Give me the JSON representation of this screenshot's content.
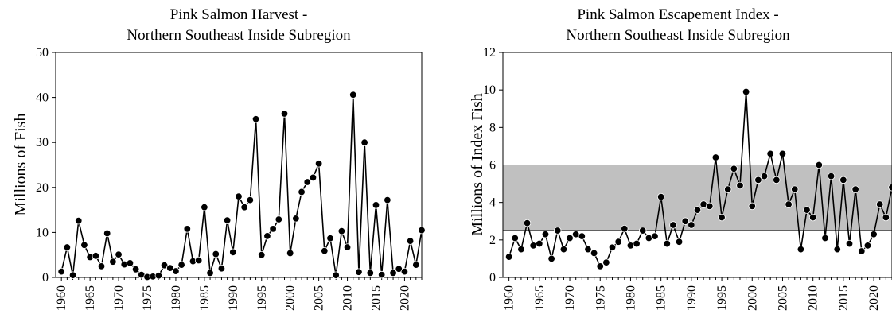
{
  "chart_data": [
    {
      "type": "line",
      "title": "Pink Salmon Harvest  -",
      "subtitle": "Northern Southeast Inside Subregion",
      "xlabel": "",
      "ylabel": "Millions of Fish",
      "xlim": [
        1959,
        2023
      ],
      "ylim": [
        0,
        50
      ],
      "yticks": [
        0,
        10,
        20,
        30,
        40,
        50
      ],
      "xticks": [
        1960,
        1965,
        1970,
        1975,
        1980,
        1985,
        1990,
        1995,
        2000,
        2005,
        2010,
        2015,
        2020
      ],
      "grid": false,
      "line_color": "#000000",
      "marker_color": "#000000",
      "series": [
        {
          "x": [
            1960,
            1961,
            1962,
            1963,
            1964,
            1965,
            1966,
            1967,
            1968,
            1969,
            1970,
            1971,
            1972,
            1973,
            1974,
            1975,
            1976,
            1977,
            1978,
            1979,
            1980,
            1981,
            1982,
            1983,
            1984,
            1985,
            1986,
            1987,
            1988,
            1989,
            1990,
            1991,
            1992,
            1993,
            1994,
            1995,
            1996,
            1997,
            1998,
            1999,
            2000,
            2001,
            2002,
            2003,
            2004,
            2005,
            2006,
            2007,
            2008,
            2009,
            2010,
            2011,
            2012,
            2013,
            2014,
            2015,
            2016,
            2017,
            2018,
            2019,
            2020,
            2021,
            2022,
            2023
          ],
          "values": [
            1.3,
            6.7,
            0.5,
            12.6,
            7.2,
            4.5,
            4.8,
            2.5,
            9.8,
            3.5,
            5.1,
            2.9,
            3.2,
            1.8,
            0.6,
            0.1,
            0.2,
            0.4,
            2.7,
            2.1,
            1.4,
            2.8,
            10.8,
            3.6,
            3.8,
            15.6,
            1.0,
            5.2,
            2.0,
            12.7,
            5.6,
            18.0,
            15.6,
            17.2,
            35.2,
            5.0,
            9.2,
            10.8,
            12.9,
            36.4,
            5.4,
            13.1,
            19.0,
            21.2,
            22.2,
            25.3,
            5.9,
            8.7,
            0.5,
            10.3,
            6.7,
            40.6,
            1.2,
            30.0,
            1.0,
            16.1,
            0.6,
            17.2,
            1.0,
            1.9,
            1.3,
            8.1,
            2.8,
            10.5
          ]
        }
      ]
    },
    {
      "type": "line",
      "title": "Pink Salmon Escapement Index  -",
      "subtitle": "Northern Southeast Inside Subregion",
      "xlabel": "",
      "ylabel": "Millions of Index Fish",
      "xlim": [
        1959,
        2023
      ],
      "ylim": [
        0,
        12
      ],
      "yticks": [
        0,
        2,
        4,
        6,
        8,
        10,
        12
      ],
      "xticks": [
        1960,
        1965,
        1970,
        1975,
        1980,
        1985,
        1990,
        1995,
        2000,
        2005,
        2010,
        2015,
        2020
      ],
      "grid": false,
      "goal_range": [
        2.5,
        6.0
      ],
      "goal_color": "#c0c0c0",
      "line_color": "#000000",
      "marker_color": "#000000",
      "series": [
        {
          "x": [
            1960,
            1961,
            1962,
            1963,
            1964,
            1965,
            1966,
            1967,
            1968,
            1969,
            1970,
            1971,
            1972,
            1973,
            1974,
            1975,
            1976,
            1977,
            1978,
            1979,
            1980,
            1981,
            1982,
            1983,
            1984,
            1985,
            1986,
            1987,
            1988,
            1989,
            1990,
            1991,
            1992,
            1993,
            1994,
            1995,
            1996,
            1997,
            1998,
            1999,
            2000,
            2001,
            2002,
            2003,
            2004,
            2005,
            2006,
            2007,
            2008,
            2009,
            2010,
            2011,
            2012,
            2013,
            2014,
            2015,
            2016,
            2017,
            2018,
            2019,
            2020,
            2021,
            2022,
            2023
          ],
          "values": [
            1.1,
            2.1,
            1.5,
            2.9,
            1.7,
            1.8,
            2.3,
            1.0,
            2.5,
            1.5,
            2.1,
            2.3,
            2.2,
            1.5,
            1.3,
            0.6,
            0.8,
            1.6,
            1.9,
            2.6,
            1.7,
            1.8,
            2.5,
            2.1,
            2.2,
            4.3,
            1.8,
            2.8,
            1.9,
            3.0,
            2.8,
            3.6,
            3.9,
            3.8,
            6.4,
            3.2,
            4.7,
            5.8,
            4.9,
            9.9,
            3.8,
            5.2,
            5.4,
            6.6,
            5.2,
            6.6,
            3.9,
            4.7,
            1.5,
            3.6,
            3.2,
            6.0,
            2.1,
            5.4,
            1.5,
            5.2,
            1.8,
            4.7,
            1.4,
            1.7,
            2.3,
            3.9,
            3.2,
            4.8
          ]
        }
      ]
    }
  ]
}
